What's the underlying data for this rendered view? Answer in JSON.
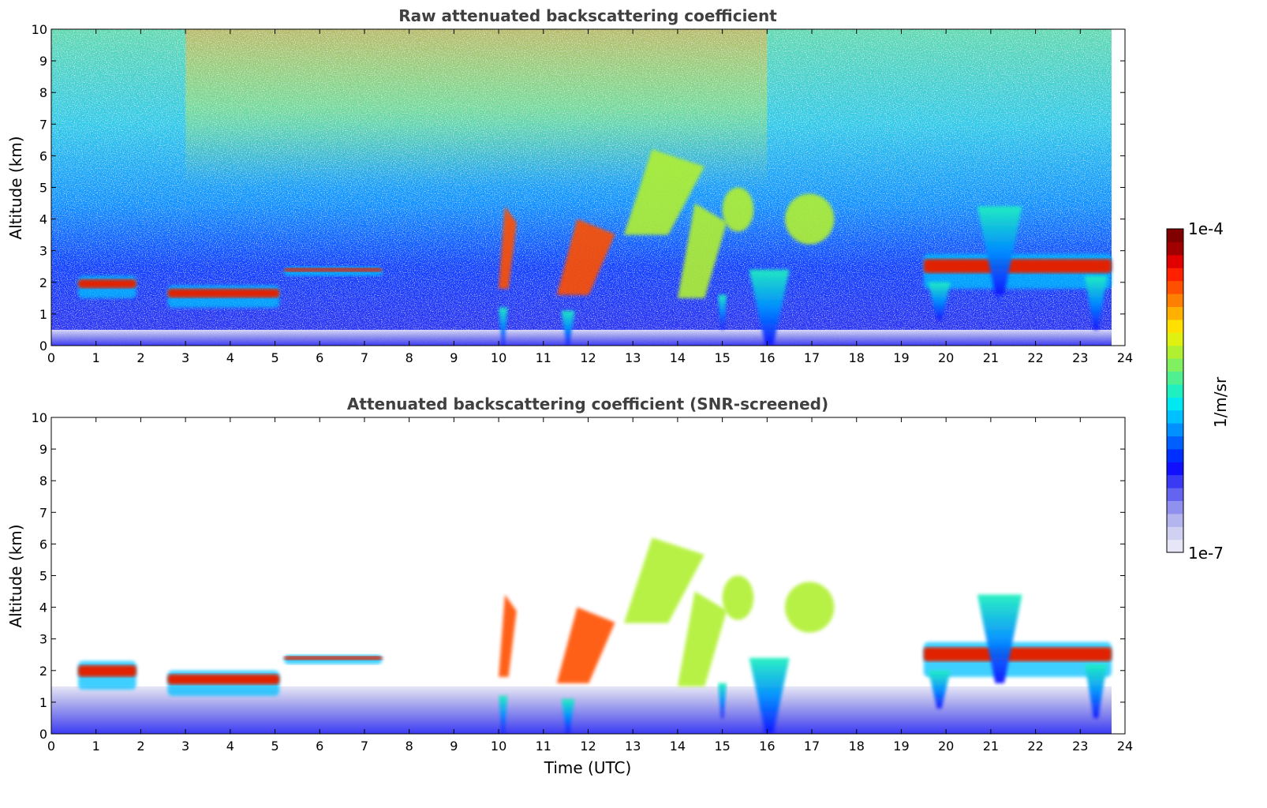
{
  "chart_data": [
    {
      "type": "heatmap",
      "title": "Raw attenuated backscattering coefficient",
      "xlabel": "",
      "ylabel": "Altitude (km)",
      "xlim": [
        0,
        24
      ],
      "ylim": [
        0,
        10
      ],
      "x_ticks": [
        0,
        1,
        2,
        3,
        4,
        5,
        6,
        7,
        8,
        9,
        10,
        11,
        12,
        13,
        14,
        15,
        16,
        17,
        18,
        19,
        20,
        21,
        22,
        23,
        24
      ],
      "y_ticks": [
        0,
        1,
        2,
        3,
        4,
        5,
        6,
        7,
        8,
        9,
        10
      ],
      "colorscale": "jet (log)",
      "features": [
        {
          "kind": "noise_field",
          "x": [
            0,
            23.7
          ],
          "y": [
            0,
            10
          ]
        },
        {
          "kind": "boundary_layer",
          "x": [
            0,
            23.7
          ],
          "y": [
            0,
            0.5
          ]
        },
        {
          "kind": "cloud_layer",
          "x": [
            0.6,
            1.9
          ],
          "y": [
            1.5,
            2.2
          ],
          "value": "high"
        },
        {
          "kind": "cloud_layer",
          "x": [
            2.6,
            5.1
          ],
          "y": [
            1.2,
            1.9
          ],
          "value": "high"
        },
        {
          "kind": "cloud_layer",
          "x": [
            5.2,
            7.4
          ],
          "y": [
            2.2,
            2.5
          ],
          "value": "high"
        },
        {
          "kind": "cloud_plume",
          "x": [
            10.0,
            10.4
          ],
          "y": [
            1.8,
            4.4
          ],
          "value": "high"
        },
        {
          "kind": "cloud_plume",
          "x": [
            11.3,
            12.6
          ],
          "y": [
            1.6,
            4.0
          ],
          "value": "high"
        },
        {
          "kind": "cloud_plume",
          "x": [
            12.8,
            14.6
          ],
          "y": [
            3.5,
            6.2
          ],
          "value": "medium"
        },
        {
          "kind": "cloud_plume",
          "x": [
            14.0,
            15.1
          ],
          "y": [
            1.5,
            4.5
          ],
          "value": "medium"
        },
        {
          "kind": "cloud_patch",
          "x": [
            15.0,
            15.7
          ],
          "y": [
            3.6,
            5.0
          ],
          "value": "medium"
        },
        {
          "kind": "cloud_patch",
          "x": [
            16.4,
            17.5
          ],
          "y": [
            3.2,
            4.8
          ],
          "value": "medium"
        },
        {
          "kind": "precip_plume",
          "x": [
            15.6,
            16.5
          ],
          "y": [
            0,
            2.4
          ],
          "value": "low"
        },
        {
          "kind": "cloud_layer",
          "x": [
            19.5,
            23.7
          ],
          "y": [
            1.8,
            2.9
          ],
          "value": "high"
        },
        {
          "kind": "precip_plume",
          "x": [
            19.6,
            20.1
          ],
          "y": [
            0.8,
            2.0
          ],
          "value": "low"
        },
        {
          "kind": "precip_plume",
          "x": [
            20.7,
            21.7
          ],
          "y": [
            1.6,
            4.4
          ],
          "value": "low"
        },
        {
          "kind": "precip_plume",
          "x": [
            23.1,
            23.6
          ],
          "y": [
            0.5,
            2.2
          ],
          "value": "low"
        },
        {
          "kind": "fall_streak",
          "x": [
            10.0,
            10.2
          ],
          "y": [
            0,
            1.2
          ],
          "value": "low"
        },
        {
          "kind": "fall_streak",
          "x": [
            11.4,
            11.7
          ],
          "y": [
            0,
            1.1
          ],
          "value": "low"
        },
        {
          "kind": "fall_streak",
          "x": [
            14.9,
            15.1
          ],
          "y": [
            0.5,
            1.6
          ],
          "value": "low"
        }
      ]
    },
    {
      "type": "heatmap",
      "title": "Attenuated backscattering coefficient (SNR-screened)",
      "xlabel": "Time (UTC)",
      "ylabel": "Altitude (km)",
      "xlim": [
        0,
        24
      ],
      "ylim": [
        0,
        10
      ],
      "x_ticks": [
        0,
        1,
        2,
        3,
        4,
        5,
        6,
        7,
        8,
        9,
        10,
        11,
        12,
        13,
        14,
        15,
        16,
        17,
        18,
        19,
        20,
        21,
        22,
        23,
        24
      ],
      "y_ticks": [
        0,
        1,
        2,
        3,
        4,
        5,
        6,
        7,
        8,
        9,
        10
      ],
      "colorscale": "jet (log)",
      "features": [
        {
          "kind": "boundary_layer",
          "x": [
            0,
            23.7
          ],
          "y": [
            0,
            1.5
          ]
        },
        {
          "kind": "cloud_layer",
          "x": [
            0.6,
            1.9
          ],
          "y": [
            1.4,
            2.3
          ],
          "value": "high"
        },
        {
          "kind": "cloud_layer",
          "x": [
            2.6,
            5.1
          ],
          "y": [
            1.2,
            2.0
          ],
          "value": "high"
        },
        {
          "kind": "cloud_layer",
          "x": [
            5.2,
            7.4
          ],
          "y": [
            2.2,
            2.5
          ],
          "value": "high"
        },
        {
          "kind": "cloud_plume",
          "x": [
            10.0,
            10.4
          ],
          "y": [
            1.8,
            4.4
          ],
          "value": "high"
        },
        {
          "kind": "cloud_plume",
          "x": [
            11.3,
            12.6
          ],
          "y": [
            1.6,
            4.0
          ],
          "value": "high"
        },
        {
          "kind": "cloud_plume",
          "x": [
            12.8,
            14.6
          ],
          "y": [
            3.5,
            6.2
          ],
          "value": "medium"
        },
        {
          "kind": "cloud_plume",
          "x": [
            14.0,
            15.1
          ],
          "y": [
            1.5,
            4.5
          ],
          "value": "medium"
        },
        {
          "kind": "cloud_patch",
          "x": [
            15.0,
            15.7
          ],
          "y": [
            3.6,
            5.0
          ],
          "value": "medium"
        },
        {
          "kind": "cloud_patch",
          "x": [
            16.4,
            17.5
          ],
          "y": [
            3.2,
            4.8
          ],
          "value": "medium"
        },
        {
          "kind": "precip_plume",
          "x": [
            15.6,
            16.5
          ],
          "y": [
            0,
            2.4
          ],
          "value": "low"
        },
        {
          "kind": "cloud_layer",
          "x": [
            19.5,
            23.7
          ],
          "y": [
            1.8,
            2.9
          ],
          "value": "high"
        },
        {
          "kind": "precip_plume",
          "x": [
            19.6,
            20.1
          ],
          "y": [
            0.8,
            2.0
          ],
          "value": "low"
        },
        {
          "kind": "precip_plume",
          "x": [
            20.7,
            21.7
          ],
          "y": [
            1.6,
            4.4
          ],
          "value": "low"
        },
        {
          "kind": "precip_plume",
          "x": [
            23.1,
            23.6
          ],
          "y": [
            0.5,
            2.2
          ],
          "value": "low"
        },
        {
          "kind": "fall_streak",
          "x": [
            10.0,
            10.2
          ],
          "y": [
            0,
            1.2
          ],
          "value": "low"
        },
        {
          "kind": "fall_streak",
          "x": [
            11.4,
            11.7
          ],
          "y": [
            0,
            1.1
          ],
          "value": "low"
        },
        {
          "kind": "fall_streak",
          "x": [
            14.9,
            15.1
          ],
          "y": [
            0.5,
            1.6
          ],
          "value": "low"
        }
      ]
    }
  ],
  "colorbar": {
    "label": "1/m/sr",
    "max_label": "1e-4",
    "min_label": "1e-7",
    "colors": [
      "#e6e6f7",
      "#d0d0f0",
      "#b4b4ee",
      "#9090ee",
      "#6464f0",
      "#3a3af5",
      "#1010ff",
      "#0030ff",
      "#0060ff",
      "#0090ff",
      "#00c0ff",
      "#00e8f0",
      "#20f0c0",
      "#50f090",
      "#80f060",
      "#b0f030",
      "#e0f010",
      "#ffe000",
      "#ffb000",
      "#ff8000",
      "#ff5000",
      "#ff2000",
      "#e00000",
      "#a00000",
      "#800000"
    ]
  }
}
